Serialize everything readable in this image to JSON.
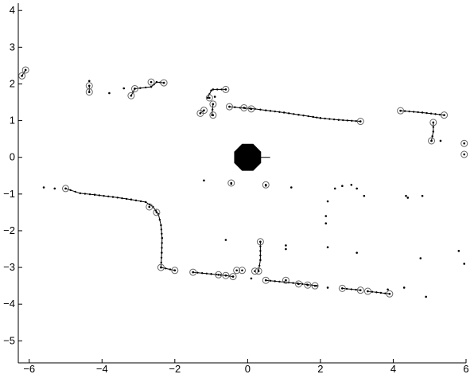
{
  "chart_data": {
    "type": "scatter",
    "xlim": [
      -6.3,
      6.0
    ],
    "ylim": [
      -5.6,
      4.2
    ],
    "x_ticks": [
      -6,
      -4,
      -2,
      0,
      2,
      4,
      6
    ],
    "y_ticks": [
      -5,
      -4,
      -3,
      -2,
      -1,
      0,
      1,
      2,
      3,
      4
    ],
    "x_tick_labels": [
      "−6",
      "−4",
      "−2",
      "0",
      "2",
      "4",
      "6"
    ],
    "y_tick_labels": [
      "−5",
      "−4",
      "−3",
      "−2",
      "−1",
      "0",
      "1",
      "2",
      "3",
      "4"
    ],
    "grid": false,
    "legend": "none",
    "colors": {
      "marks": "#000000",
      "circles": "#666666",
      "robot": "#000000"
    },
    "robot": {
      "x": 0.0,
      "y": 0.0,
      "radius": 0.4,
      "heading_deg": 0
    },
    "line_segments": [
      {
        "x": [
          -5.0,
          -4.6,
          -4.2,
          -3.7,
          -3.2,
          -2.8,
          -2.6
        ],
        "y": [
          -0.85,
          -0.98,
          -1.02,
          -1.08,
          -1.15,
          -1.22,
          -1.35
        ]
      },
      {
        "x": [
          -2.6,
          -2.45,
          -2.38,
          -2.35,
          -2.36,
          -2.38
        ],
        "y": [
          -1.35,
          -1.55,
          -1.85,
          -2.2,
          -2.6,
          -3.0
        ]
      },
      {
        "x": [
          -2.38,
          -2.0
        ],
        "y": [
          -3.0,
          -3.08
        ]
      },
      {
        "x": [
          -1.5,
          -1.0,
          -0.6,
          -0.4
        ],
        "y": [
          -3.13,
          -3.18,
          -3.22,
          -3.25
        ]
      },
      {
        "x": [
          -0.5,
          -0.2,
          0.2,
          0.5,
          1.0,
          1.4,
          1.8,
          2.0
        ],
        "y": [
          1.38,
          1.35,
          1.32,
          1.28,
          1.22,
          1.16,
          1.1,
          1.07
        ]
      },
      {
        "x": [
          2.0,
          2.5,
          3.1
        ],
        "y": [
          1.07,
          1.02,
          0.98
        ]
      },
      {
        "x": [
          4.2,
          4.8,
          5.4
        ],
        "y": [
          1.27,
          1.22,
          1.15
        ]
      },
      {
        "x": [
          5.1,
          5.1,
          5.05
        ],
        "y": [
          0.95,
          0.7,
          0.45
        ]
      },
      {
        "x": [
          0.35,
          0.35,
          0.3
        ],
        "y": [
          -2.3,
          -2.8,
          -3.1
        ]
      },
      {
        "x": [
          0.5,
          1.0,
          1.5,
          1.9
        ],
        "y": [
          -3.35,
          -3.4,
          -3.45,
          -3.5
        ]
      },
      {
        "x": [
          2.6,
          3.1
        ],
        "y": [
          -3.57,
          -3.62
        ]
      },
      {
        "x": [
          3.3,
          3.9
        ],
        "y": [
          -3.65,
          -3.72
        ]
      },
      {
        "x": [
          -3.2,
          -3.1,
          -2.65,
          -2.5,
          -2.3
        ],
        "y": [
          1.68,
          1.87,
          1.92,
          2.05,
          2.03
        ]
      },
      {
        "x": [
          -1.1,
          -1.0,
          -0.95,
          -0.6
        ],
        "y": [
          1.62,
          1.82,
          1.85,
          1.85
        ]
      },
      {
        "x": [
          -1.3,
          -1.2
        ],
        "y": [
          1.2,
          1.28
        ]
      },
      {
        "x": [
          -6.2,
          -6.1
        ],
        "y": [
          2.22,
          2.38
        ]
      },
      {
        "x": [
          -4.35,
          -4.35
        ],
        "y": [
          1.78,
          1.95
        ]
      },
      {
        "x": [
          -0.98,
          -0.95
        ],
        "y": [
          1.15,
          1.45
        ]
      }
    ],
    "circled_points": [
      {
        "x": -6.2,
        "y": 2.22
      },
      {
        "x": -6.1,
        "y": 2.38
      },
      {
        "x": -4.35,
        "y": 1.95
      },
      {
        "x": -4.35,
        "y": 1.78
      },
      {
        "x": -3.2,
        "y": 1.68
      },
      {
        "x": -3.1,
        "y": 1.87
      },
      {
        "x": -2.65,
        "y": 2.05
      },
      {
        "x": -2.3,
        "y": 2.03
      },
      {
        "x": -1.3,
        "y": 1.2
      },
      {
        "x": -1.2,
        "y": 1.28
      },
      {
        "x": -1.05,
        "y": 1.62
      },
      {
        "x": -0.95,
        "y": 1.45
      },
      {
        "x": -0.95,
        "y": 1.15
      },
      {
        "x": -0.6,
        "y": 1.85
      },
      {
        "x": -0.5,
        "y": 1.38
      },
      {
        "x": -0.1,
        "y": 1.35
      },
      {
        "x": 0.1,
        "y": 1.32
      },
      {
        "x": 3.1,
        "y": 0.98
      },
      {
        "x": 4.2,
        "y": 1.27
      },
      {
        "x": 5.4,
        "y": 1.15
      },
      {
        "x": 5.1,
        "y": 0.95
      },
      {
        "x": 5.05,
        "y": 0.45
      },
      {
        "x": 5.95,
        "y": 0.38
      },
      {
        "x": 5.95,
        "y": 0.08
      },
      {
        "x": -5.0,
        "y": -0.85
      },
      {
        "x": -2.7,
        "y": -1.35
      },
      {
        "x": -2.5,
        "y": -1.5
      },
      {
        "x": -2.38,
        "y": -3.0
      },
      {
        "x": -2.0,
        "y": -3.08
      },
      {
        "x": -1.5,
        "y": -3.13
      },
      {
        "x": -0.8,
        "y": -3.2
      },
      {
        "x": -0.6,
        "y": -3.22
      },
      {
        "x": -0.4,
        "y": -3.25
      },
      {
        "x": -0.3,
        "y": -3.08
      },
      {
        "x": -0.15,
        "y": -3.08
      },
      {
        "x": 0.2,
        "y": -3.1
      },
      {
        "x": 0.3,
        "y": -3.1
      },
      {
        "x": 0.35,
        "y": -2.3
      },
      {
        "x": 0.5,
        "y": -3.35
      },
      {
        "x": 1.05,
        "y": -3.35
      },
      {
        "x": 1.4,
        "y": -3.45
      },
      {
        "x": 1.65,
        "y": -3.48
      },
      {
        "x": 1.85,
        "y": -3.5
      },
      {
        "x": 2.6,
        "y": -3.57
      },
      {
        "x": 3.1,
        "y": -3.62
      },
      {
        "x": 3.3,
        "y": -3.65
      },
      {
        "x": 3.9,
        "y": -3.72
      },
      {
        "x": -0.45,
        "y": -0.7
      },
      {
        "x": 0.5,
        "y": -0.75
      }
    ],
    "scattered_points": [
      {
        "x": -4.35,
        "y": 2.08
      },
      {
        "x": -3.8,
        "y": 1.75
      },
      {
        "x": 5.3,
        "y": 0.45
      },
      {
        "x": -5.6,
        "y": -0.82
      },
      {
        "x": -5.3,
        "y": -0.85
      },
      {
        "x": -1.2,
        "y": -0.63
      },
      {
        "x": -0.45,
        "y": -0.72
      },
      {
        "x": 0.5,
        "y": -0.77
      },
      {
        "x": 1.2,
        "y": -0.82
      },
      {
        "x": 2.4,
        "y": -0.85
      },
      {
        "x": 2.6,
        "y": -0.78
      },
      {
        "x": 2.85,
        "y": -0.75
      },
      {
        "x": 3.0,
        "y": -0.85
      },
      {
        "x": 3.2,
        "y": -1.05
      },
      {
        "x": 2.2,
        "y": -1.2
      },
      {
        "x": 2.15,
        "y": -1.6
      },
      {
        "x": 2.15,
        "y": -1.8
      },
      {
        "x": 4.35,
        "y": -1.05
      },
      {
        "x": 4.4,
        "y": -1.1
      },
      {
        "x": 4.8,
        "y": -1.05
      },
      {
        "x": -0.6,
        "y": -2.25
      },
      {
        "x": 1.05,
        "y": -2.4
      },
      {
        "x": 1.05,
        "y": -2.5
      },
      {
        "x": 2.2,
        "y": -2.45
      },
      {
        "x": 3.0,
        "y": -2.6
      },
      {
        "x": 4.75,
        "y": -2.75
      },
      {
        "x": 5.8,
        "y": -2.55
      },
      {
        "x": 5.95,
        "y": -2.9
      },
      {
        "x": 0.1,
        "y": -3.3
      },
      {
        "x": 2.2,
        "y": -3.55
      },
      {
        "x": 3.85,
        "y": -3.6
      },
      {
        "x": 4.3,
        "y": -3.55
      },
      {
        "x": 4.9,
        "y": -3.8
      },
      {
        "x": -0.9,
        "y": 1.65
      },
      {
        "x": -3.4,
        "y": 1.88
      }
    ]
  }
}
